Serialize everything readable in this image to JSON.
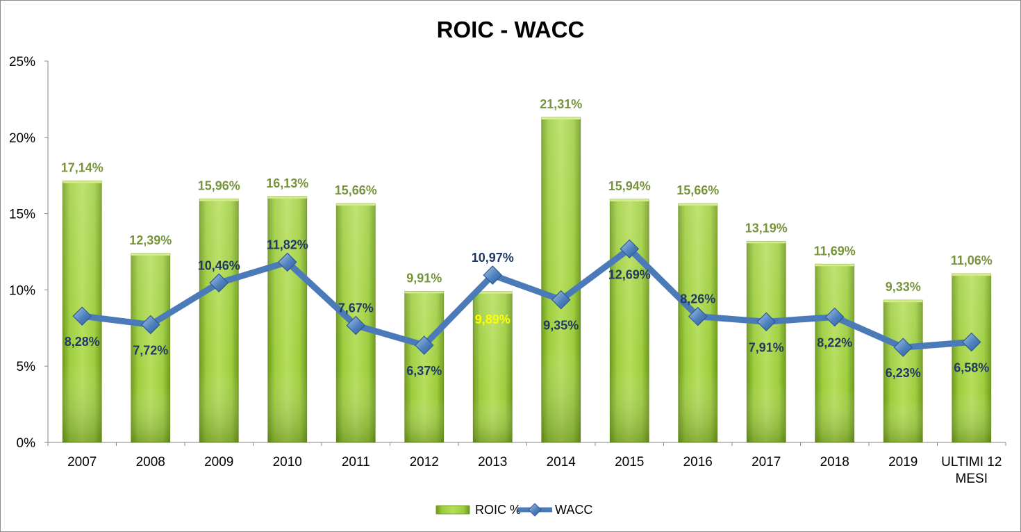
{
  "chart_data": {
    "type": "bar",
    "title": "ROIC - WACC",
    "categories": [
      "2007",
      "2008",
      "2009",
      "2010",
      "2011",
      "2012",
      "2013",
      "2014",
      "2015",
      "2016",
      "2017",
      "2018",
      "2019",
      "ULTIMI 12 MESI"
    ],
    "category_lines": [
      [
        "2007"
      ],
      [
        "2008"
      ],
      [
        "2009"
      ],
      [
        "2010"
      ],
      [
        "2011"
      ],
      [
        "2012"
      ],
      [
        "2013"
      ],
      [
        "2014"
      ],
      [
        "2015"
      ],
      [
        "2016"
      ],
      [
        "2017"
      ],
      [
        "2018"
      ],
      [
        "2019"
      ],
      [
        "ULTIMI 12",
        "MESI"
      ]
    ],
    "ylim": [
      0,
      25
    ],
    "yticks": [
      0,
      5,
      10,
      15,
      20,
      25
    ],
    "ytick_labels": [
      "0%",
      "5%",
      "10%",
      "15%",
      "20%",
      "25%"
    ],
    "legend_position": "bottom",
    "grid": false,
    "series": [
      {
        "name": "ROIC %",
        "kind": "bar",
        "color": "#9acd32",
        "label_color": "#77933c",
        "values": [
          17.14,
          12.39,
          15.96,
          16.13,
          15.66,
          9.91,
          9.89,
          21.31,
          15.94,
          15.66,
          13.19,
          11.69,
          9.33,
          11.06
        ],
        "labels": [
          "17,14%",
          "12,39%",
          "15,96%",
          "16,13%",
          "15,66%",
          "9,91%",
          "9,89%",
          "21,31%",
          "15,94%",
          "15,66%",
          "13,19%",
          "11,69%",
          "9,33%",
          "11,06%"
        ]
      },
      {
        "name": "WACC",
        "kind": "line",
        "color": "#4f81bd",
        "label_color": "#1f3864",
        "values": [
          8.28,
          7.72,
          10.46,
          11.82,
          7.67,
          6.37,
          10.97,
          9.35,
          12.69,
          8.26,
          7.91,
          8.22,
          6.23,
          6.58
        ],
        "labels": [
          "8,28%",
          "7,72%",
          "10,46%",
          "11,82%",
          "7,67%",
          "6,37%",
          "10,97%",
          "9,35%",
          "12,69%",
          "8,26%",
          "7,91%",
          "8,22%",
          "6,23%",
          "6,58%"
        ]
      }
    ],
    "highlight_color": "#ffff00"
  }
}
